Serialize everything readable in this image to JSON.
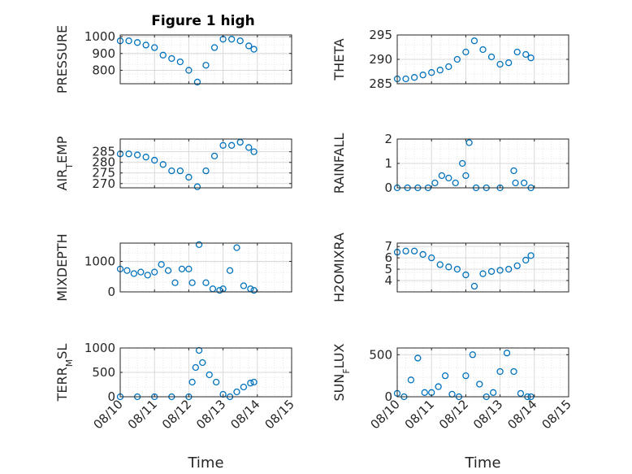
{
  "figure": {
    "title": "Figure 1 high",
    "xlabel": "Time"
  },
  "colors": {
    "marker": "#0072bd",
    "axis": "#262626",
    "grid": "#d9d9d9"
  },
  "chart_data": [
    {
      "type": "scatter",
      "ylabel": "PRESSURE",
      "title": "Figure 1 high",
      "x_ticks": [
        "08/10",
        "08/11",
        "08/12",
        "08/13",
        "08/14",
        "08/15"
      ],
      "xlim": [
        0,
        5
      ],
      "ylim": [
        720,
        1010
      ],
      "y_ticks": [
        800,
        900,
        1000
      ],
      "x_tick_labels_shown": false,
      "grid": true,
      "series": [
        {
          "x": [
            0,
            0.25,
            0.5,
            0.75,
            1,
            1.25,
            1.5,
            1.75,
            2,
            2.25,
            2.5,
            2.75,
            3,
            3.25,
            3.5,
            3.75,
            3.9
          ],
          "y": [
            975,
            975,
            965,
            950,
            935,
            890,
            870,
            850,
            800,
            730,
            830,
            935,
            985,
            985,
            975,
            945,
            925
          ]
        }
      ]
    },
    {
      "type": "scatter",
      "ylabel": "THETA",
      "x_ticks": [
        "08/10",
        "08/11",
        "08/12",
        "08/13",
        "08/14",
        "08/15"
      ],
      "xlim": [
        0,
        5
      ],
      "ylim": [
        285,
        295
      ],
      "y_ticks": [
        285,
        290,
        295
      ],
      "x_tick_labels_shown": false,
      "grid": true,
      "series": [
        {
          "x": [
            0,
            0.25,
            0.5,
            0.75,
            1,
            1.25,
            1.5,
            1.75,
            2,
            2.25,
            2.5,
            2.75,
            3,
            3.25,
            3.5,
            3.75,
            3.9
          ],
          "y": [
            286,
            286,
            286.3,
            286.8,
            287.3,
            287.8,
            288.5,
            290,
            291.5,
            293.8,
            292,
            290.5,
            289,
            289.3,
            291.5,
            291,
            290.3
          ]
        }
      ]
    },
    {
      "type": "scatter",
      "ylabel": "AIR_TEMP",
      "x_ticks": [
        "08/10",
        "08/11",
        "08/12",
        "08/13",
        "08/14",
        "08/15"
      ],
      "xlim": [
        0,
        5
      ],
      "ylim": [
        268,
        291
      ],
      "y_ticks": [
        270,
        275,
        280,
        285
      ],
      "x_tick_labels_shown": false,
      "grid": true,
      "series": [
        {
          "x": [
            0,
            0.25,
            0.5,
            0.75,
            1,
            1.25,
            1.5,
            1.75,
            2,
            2.25,
            2.5,
            2.75,
            3,
            3.25,
            3.5,
            3.75,
            3.9
          ],
          "y": [
            284,
            284,
            283.5,
            282.5,
            281,
            279,
            276,
            276,
            273,
            268.5,
            276,
            283,
            288,
            288,
            289.5,
            287,
            285
          ]
        }
      ]
    },
    {
      "type": "scatter",
      "ylabel": "RAINFALL",
      "x_ticks": [
        "08/10",
        "08/11",
        "08/12",
        "08/13",
        "08/14",
        "08/15"
      ],
      "xlim": [
        0,
        5
      ],
      "ylim": [
        0,
        2
      ],
      "y_ticks": [
        0,
        1,
        2
      ],
      "x_tick_labels_shown": false,
      "grid": true,
      "series": [
        {
          "x": [
            0,
            0.3,
            0.6,
            0.9,
            1.1,
            1.3,
            1.5,
            1.7,
            1.9,
            2.0,
            2.1,
            2.3,
            2.6,
            3.0,
            3.4,
            3.45,
            3.7,
            3.9
          ],
          "y": [
            0,
            0,
            0,
            0,
            0.2,
            0.5,
            0.4,
            0.2,
            1.0,
            0.5,
            1.85,
            0,
            0,
            0,
            0.7,
            0.2,
            0.2,
            0
          ]
        }
      ]
    },
    {
      "type": "scatter",
      "ylabel": "MIXDEPTH",
      "x_ticks": [
        "08/10",
        "08/11",
        "08/12",
        "08/13",
        "08/14",
        "08/15"
      ],
      "xlim": [
        0,
        5
      ],
      "ylim": [
        0,
        1600
      ],
      "y_ticks": [
        0,
        1000
      ],
      "x_tick_labels_shown": false,
      "grid": true,
      "series": [
        {
          "x": [
            0,
            0.2,
            0.4,
            0.6,
            0.8,
            1,
            1.2,
            1.4,
            1.6,
            1.8,
            2,
            2.1,
            2.3,
            2.5,
            2.7,
            2.9,
            3.0,
            3.2,
            3.4,
            3.6,
            3.8,
            3.9
          ],
          "y": [
            750,
            700,
            600,
            650,
            550,
            650,
            900,
            700,
            300,
            750,
            750,
            300,
            1550,
            300,
            100,
            50,
            100,
            700,
            1450,
            200,
            100,
            50
          ]
        }
      ]
    },
    {
      "type": "scatter",
      "ylabel": "H2OMIXRA",
      "x_ticks": [
        "08/10",
        "08/11",
        "08/12",
        "08/13",
        "08/14",
        "08/15"
      ],
      "xlim": [
        0,
        5
      ],
      "ylim": [
        3,
        7.3
      ],
      "y_ticks": [
        4,
        5,
        6,
        7
      ],
      "x_tick_labels_shown": false,
      "grid": true,
      "series": [
        {
          "x": [
            0,
            0.25,
            0.5,
            0.75,
            1,
            1.25,
            1.5,
            1.75,
            2,
            2.25,
            2.5,
            2.75,
            3,
            3.25,
            3.5,
            3.75,
            3.9
          ],
          "y": [
            6.5,
            6.6,
            6.6,
            6.3,
            6.0,
            5.4,
            5.2,
            5.0,
            4.5,
            3.5,
            4.6,
            4.8,
            4.9,
            5.0,
            5.3,
            5.8,
            6.2
          ]
        }
      ]
    },
    {
      "type": "scatter",
      "ylabel": "TERR_MSL",
      "x_ticks": [
        "08/10",
        "08/11",
        "08/12",
        "08/13",
        "08/14",
        "08/15"
      ],
      "xlim": [
        0,
        5
      ],
      "ylim": [
        0,
        1000
      ],
      "y_ticks": [
        0,
        500,
        1000
      ],
      "x_tick_labels_shown": true,
      "grid": true,
      "series": [
        {
          "x": [
            0,
            0.5,
            1,
            1.5,
            2,
            2.1,
            2.2,
            2.3,
            2.4,
            2.6,
            2.8,
            3.0,
            3.2,
            3.4,
            3.6,
            3.8,
            3.9
          ],
          "y": [
            0,
            0,
            0,
            0,
            0,
            300,
            600,
            950,
            700,
            450,
            300,
            50,
            0,
            100,
            200,
            280,
            300
          ]
        }
      ]
    },
    {
      "type": "scatter",
      "ylabel": "SUN_FLUX",
      "x_ticks": [
        "08/10",
        "08/11",
        "08/12",
        "08/13",
        "08/14",
        "08/15"
      ],
      "xlim": [
        0,
        5
      ],
      "ylim": [
        0,
        580
      ],
      "y_ticks": [
        0,
        500
      ],
      "x_tick_labels_shown": true,
      "grid": true,
      "series": [
        {
          "x": [
            0,
            0.2,
            0.4,
            0.6,
            0.8,
            1.0,
            1.2,
            1.4,
            1.6,
            1.8,
            2.0,
            2.2,
            2.4,
            2.6,
            2.8,
            3.0,
            3.2,
            3.4,
            3.6,
            3.8,
            3.9
          ],
          "y": [
            40,
            0,
            200,
            460,
            50,
            50,
            120,
            250,
            30,
            0,
            250,
            500,
            150,
            0,
            50,
            300,
            520,
            300,
            40,
            0,
            0
          ]
        }
      ]
    }
  ]
}
